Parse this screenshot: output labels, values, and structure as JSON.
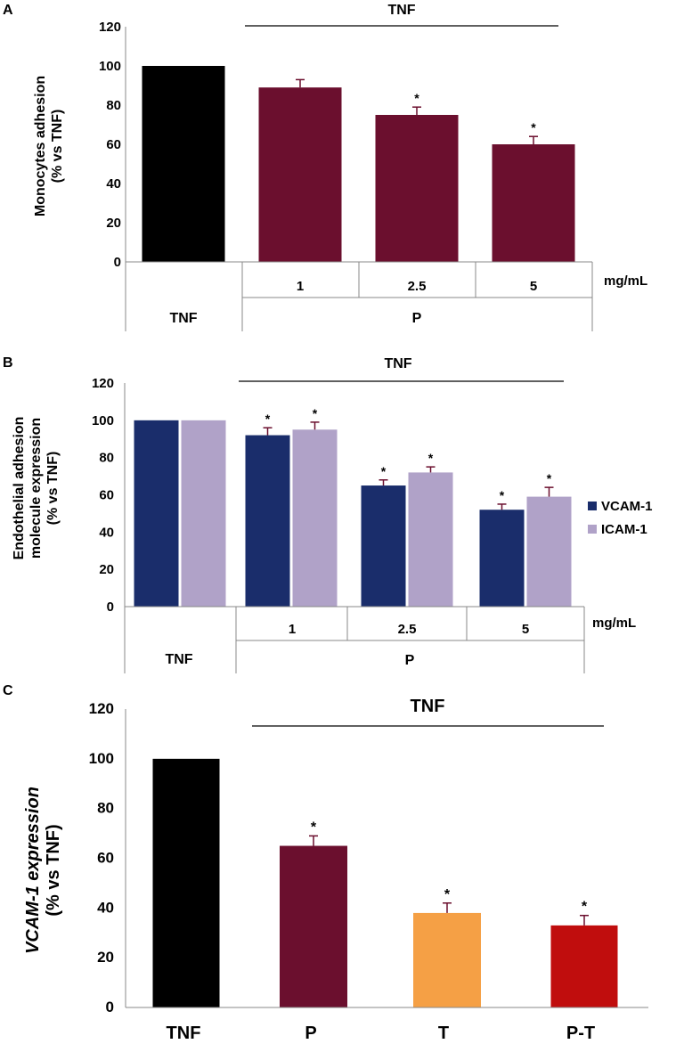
{
  "colors": {
    "black": "#000000",
    "maroon": "#6b0f2e",
    "navy": "#1a2d6b",
    "lavender": "#b0a2c8",
    "orange": "#f5a045",
    "red": "#c00d0d",
    "axis": "#888888",
    "error": "#6b0f2e"
  },
  "chart_data": [
    {
      "panel": "A",
      "type": "bar",
      "ylabel_line1": "Monocytes adhesion",
      "ylabel_line2": "(% vs TNF)",
      "ylim": [
        0,
        120
      ],
      "yticks": [
        "0",
        "20",
        "40",
        "60",
        "80",
        "100",
        "120"
      ],
      "treatment_label": "TNF",
      "unit_label": "mg/mL",
      "groups": [
        "TNF",
        "P"
      ],
      "categories": [
        "",
        "1",
        "2.5",
        "5"
      ],
      "values": [
        100,
        89,
        75,
        60
      ],
      "errors": [
        0,
        4,
        4,
        4
      ],
      "significance": [
        "",
        "",
        "*",
        "*"
      ],
      "bar_colors": [
        "#000000",
        "#6b0f2e",
        "#6b0f2e",
        "#6b0f2e"
      ]
    },
    {
      "panel": "B",
      "type": "bar",
      "ylabel_line1": "Endothelial adhesion",
      "ylabel_line2": "molecule expression",
      "ylabel_line3": "(% vs TNF)",
      "ylim": [
        0,
        120
      ],
      "yticks": [
        "0",
        "20",
        "40",
        "60",
        "80",
        "100",
        "120"
      ],
      "treatment_label": "TNF",
      "unit_label": "mg/mL",
      "groups": [
        "TNF",
        "P"
      ],
      "categories": [
        "",
        "1",
        "2.5",
        "5"
      ],
      "series": [
        {
          "name": "VCAM-1",
          "color": "#1a2d6b",
          "values": [
            100,
            92,
            65,
            52
          ],
          "errors": [
            0,
            4,
            3,
            3
          ],
          "significance": [
            "",
            "*",
            "*",
            "*"
          ]
        },
        {
          "name": "ICAM-1",
          "color": "#b0a2c8",
          "values": [
            100,
            95,
            72,
            59
          ],
          "errors": [
            0,
            4,
            3,
            5
          ],
          "significance": [
            "",
            "*",
            "*",
            "*"
          ]
        }
      ],
      "legend": [
        "VCAM-1",
        "ICAM-1"
      ],
      "legend_position": "right"
    },
    {
      "panel": "C",
      "type": "bar",
      "ylabel_line1": "VCAM-1 expression",
      "ylabel_line2": "(% vs TNF)",
      "ylim": [
        0,
        120
      ],
      "yticks": [
        "0",
        "20",
        "40",
        "60",
        "80",
        "100",
        "120"
      ],
      "treatment_label": "TNF",
      "categories": [
        "TNF",
        "P",
        "T",
        "P-T"
      ],
      "values": [
        100,
        65,
        38,
        33
      ],
      "errors": [
        0,
        4,
        4,
        4
      ],
      "significance": [
        "",
        "*",
        "*",
        "*"
      ],
      "bar_colors": [
        "#000000",
        "#6b0f2e",
        "#f5a045",
        "#c00d0d"
      ]
    }
  ]
}
